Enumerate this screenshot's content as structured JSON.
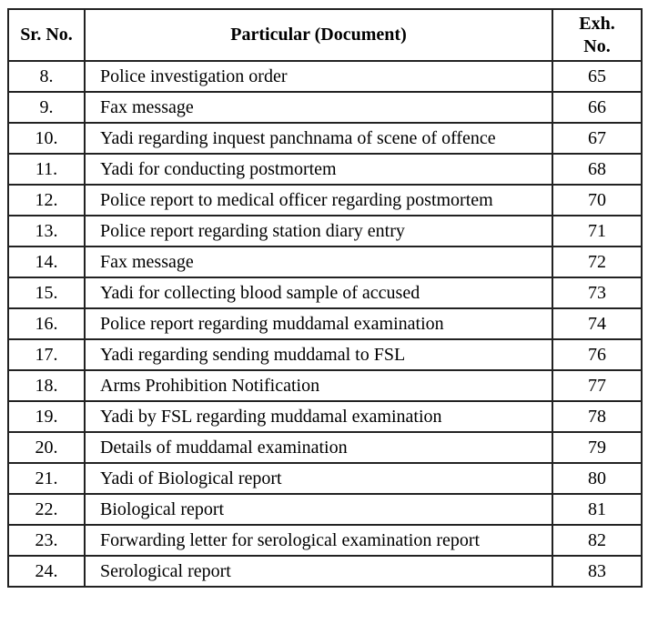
{
  "table": {
    "columns": [
      {
        "key": "sr",
        "label": "Sr. No."
      },
      {
        "key": "particular",
        "label": "Particular (Document)"
      },
      {
        "key": "exh",
        "label": "Exh. No."
      }
    ],
    "rows": [
      {
        "sr": "8.",
        "particular": "Police investigation order",
        "exh": "65"
      },
      {
        "sr": "9.",
        "particular": "Fax message",
        "exh": "66"
      },
      {
        "sr": "10.",
        "particular": "Yadi regarding inquest panchnama of scene of offence",
        "exh": "67"
      },
      {
        "sr": "11.",
        "particular": "Yadi for conducting postmortem",
        "exh": "68"
      },
      {
        "sr": "12.",
        "particular": "Police report to medical officer regarding postmortem",
        "exh": "70"
      },
      {
        "sr": "13.",
        "particular": "Police report regarding station diary entry",
        "exh": "71"
      },
      {
        "sr": "14.",
        "particular": "Fax message",
        "exh": "72"
      },
      {
        "sr": "15.",
        "particular": "Yadi for collecting blood sample of accused",
        "exh": "73"
      },
      {
        "sr": "16.",
        "particular": "Police report regarding muddamal examination",
        "exh": "74"
      },
      {
        "sr": "17.",
        "particular": "Yadi regarding sending muddamal to FSL",
        "exh": "76"
      },
      {
        "sr": "18.",
        "particular": "Arms Prohibition Notification",
        "exh": "77"
      },
      {
        "sr": "19.",
        "particular": "Yadi by FSL regarding muddamal examination",
        "exh": "78"
      },
      {
        "sr": "20.",
        "particular": "Details of muddamal examination",
        "exh": "79"
      },
      {
        "sr": "21.",
        "particular": "Yadi of Biological report",
        "exh": "80"
      },
      {
        "sr": "22.",
        "particular": "Biological report",
        "exh": "81"
      },
      {
        "sr": "23.",
        "particular": "Forwarding letter for serological examination report",
        "exh": "82"
      },
      {
        "sr": "24.",
        "particular": "Serological report",
        "exh": "83"
      }
    ],
    "colors": {
      "border": "#222222",
      "outer_border": "#000000",
      "text": "#000000",
      "background": "#ffffff"
    }
  }
}
